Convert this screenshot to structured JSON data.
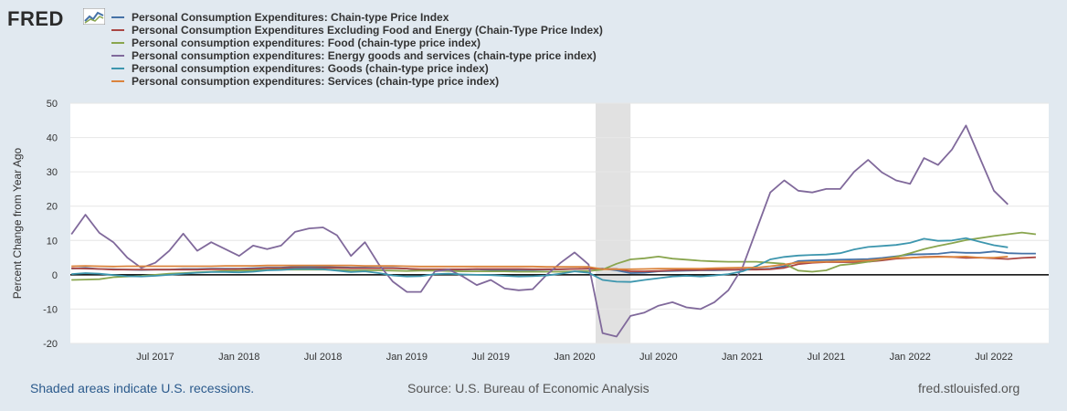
{
  "brand": {
    "name": "FRED",
    "icon": "fred-chart-logo-icon"
  },
  "footer": {
    "recession_note": "Shaded areas indicate U.S. recessions.",
    "source": "Source: U.S. Bureau of Economic Analysis",
    "site": "fred.stlouisfed.org"
  },
  "chart_data": {
    "type": "line",
    "title": "",
    "xlabel": "",
    "ylabel": "Percent Change from Year Ago",
    "ylim": [
      -20,
      50
    ],
    "yticks": [
      50,
      40,
      30,
      20,
      10,
      0,
      -10,
      -20
    ],
    "x_start": "2017-01",
    "x_end": "2022-10",
    "xticks": [
      "Jul 2017",
      "Jan 2018",
      "Jul 2018",
      "Jan 2019",
      "Jul 2019",
      "Jan 2020",
      "Jul 2020",
      "Jan 2021",
      "Jul 2021",
      "Jan 2022",
      "Jul 2022"
    ],
    "xtick_months": [
      6,
      12,
      18,
      24,
      30,
      36,
      42,
      48,
      54,
      60,
      66
    ],
    "recession": {
      "start_month": 37.5,
      "end_month": 40.0
    },
    "grid": true,
    "legend": "top",
    "series": [
      {
        "name": "Personal Consumption Expenditures: Chain-type Price Index",
        "color": "#4572a7",
        "values": [
          1.8,
          2.0,
          1.7,
          1.6,
          1.5,
          1.4,
          1.5,
          1.5,
          1.7,
          1.7,
          1.8,
          1.8,
          1.8,
          1.9,
          2.1,
          2.1,
          2.3,
          2.3,
          2.3,
          2.2,
          2.1,
          2.1,
          2.0,
          2.0,
          1.8,
          1.4,
          1.5,
          1.4,
          1.5,
          1.6,
          1.4,
          1.4,
          1.4,
          1.4,
          1.5,
          1.6,
          1.7,
          1.8,
          1.8,
          1.3,
          0.5,
          0.6,
          1.0,
          1.1,
          1.2,
          1.3,
          1.3,
          1.4,
          1.5,
          1.6,
          1.8,
          2.5,
          4.0,
          4.2,
          4.3,
          4.4,
          4.5,
          4.6,
          4.9,
          5.4,
          5.9,
          6.0,
          6.1,
          6.6,
          6.4,
          6.4,
          6.8,
          6.3,
          6.2,
          6.2
        ]
      },
      {
        "name": "Personal Consumption Expenditures Excluding Food and Energy (Chain-Type Price Index)",
        "color": "#aa4643",
        "values": [
          1.9,
          1.8,
          1.7,
          1.5,
          1.5,
          1.5,
          1.5,
          1.5,
          1.5,
          1.5,
          1.6,
          1.6,
          1.7,
          1.7,
          1.9,
          1.9,
          2.0,
          1.9,
          2.0,
          2.0,
          1.9,
          1.9,
          1.9,
          1.9,
          1.8,
          1.6,
          1.6,
          1.6,
          1.6,
          1.7,
          1.7,
          1.7,
          1.7,
          1.6,
          1.6,
          1.6,
          1.7,
          1.8,
          1.7,
          1.7,
          1.0,
          1.0,
          1.1,
          1.3,
          1.4,
          1.4,
          1.5,
          1.5,
          1.5,
          1.5,
          1.6,
          2.0,
          3.1,
          3.5,
          3.7,
          3.7,
          3.7,
          3.8,
          4.2,
          4.7,
          4.9,
          5.2,
          5.3,
          5.2,
          4.9,
          5.0,
          4.8,
          4.6,
          4.9,
          5.1
        ]
      },
      {
        "name": "Personal consumption expenditures: Food (chain-type price index)",
        "color": "#89a54e",
        "values": [
          -1.5,
          -1.4,
          -1.3,
          -0.7,
          -0.5,
          -0.3,
          0.0,
          0.3,
          0.5,
          0.7,
          0.9,
          1.1,
          1.2,
          1.3,
          1.4,
          1.5,
          1.5,
          1.5,
          1.5,
          1.4,
          1.3,
          1.3,
          1.3,
          1.2,
          1.1,
          1.2,
          1.2,
          1.1,
          1.0,
          1.0,
          1.0,
          1.0,
          0.9,
          0.9,
          0.9,
          0.9,
          1.0,
          1.1,
          1.5,
          3.2,
          4.5,
          4.8,
          5.3,
          4.7,
          4.4,
          4.1,
          3.9,
          3.8,
          3.8,
          3.8,
          3.5,
          3.2,
          1.2,
          0.9,
          1.3,
          2.8,
          3.2,
          3.8,
          4.5,
          5.2,
          6.3,
          7.5,
          8.4,
          9.2,
          10.1,
          10.7,
          11.3,
          11.8,
          12.3,
          11.8
        ]
      },
      {
        "name": "Personal consumption expenditures: Energy goods and services (chain-type price index)",
        "color": "#80699b",
        "values": [
          11.8,
          17.5,
          12.2,
          9.5,
          5.0,
          2.0,
          3.5,
          7.0,
          12.0,
          7.0,
          9.5,
          7.5,
          5.5,
          8.5,
          7.5,
          8.5,
          12.5,
          13.5,
          13.8,
          11.5,
          5.5,
          9.5,
          3.0,
          -2.0,
          -5.0,
          -5.0,
          1.0,
          1.5,
          -0.5,
          -3.0,
          -1.5,
          -4.0,
          -4.5,
          -4.2,
          0.0,
          3.5,
          6.5,
          3.0,
          -17.0,
          -18.0,
          -12.0,
          -11.0,
          -9.0,
          -8.0,
          -9.5,
          -10.0,
          -8.0,
          -4.5,
          2.0,
          13.0,
          24.0,
          27.5,
          24.5,
          24.0,
          25.0,
          25.0,
          30.0,
          33.5,
          29.8,
          27.5,
          26.5,
          34.0,
          32.0,
          36.5,
          43.5,
          34.0,
          24.5,
          20.5
        ]
      },
      {
        "name": "Personal consumption expenditures: Goods (chain-type price index)",
        "color": "#3d96ae",
        "values": [
          0.2,
          0.5,
          0.3,
          -0.1,
          -0.4,
          -0.5,
          -0.3,
          0.0,
          0.3,
          0.6,
          0.8,
          0.8,
          0.7,
          0.9,
          1.3,
          1.4,
          1.7,
          1.7,
          1.6,
          1.2,
          0.8,
          1.0,
          0.5,
          -0.2,
          -0.5,
          -0.4,
          0.2,
          0.3,
          0.1,
          0.0,
          -0.1,
          -0.3,
          -0.5,
          -0.4,
          -0.2,
          0.3,
          1.0,
          0.6,
          -1.5,
          -2.0,
          -2.1,
          -1.5,
          -1.0,
          -0.5,
          -0.3,
          -0.5,
          -0.2,
          0.2,
          1.0,
          2.5,
          4.5,
          5.2,
          5.6,
          5.8,
          5.9,
          6.3,
          7.4,
          8.1,
          8.4,
          8.7,
          9.3,
          10.5,
          9.9,
          10.0,
          10.7,
          9.6,
          8.6,
          8.0
        ]
      },
      {
        "name": "Personal consumption expenditures: Services (chain-type price index)",
        "color": "#db843d",
        "values": [
          2.5,
          2.6,
          2.5,
          2.4,
          2.5,
          2.5,
          2.5,
          2.5,
          2.5,
          2.5,
          2.5,
          2.6,
          2.6,
          2.6,
          2.7,
          2.7,
          2.7,
          2.7,
          2.7,
          2.7,
          2.7,
          2.6,
          2.6,
          2.6,
          2.5,
          2.4,
          2.4,
          2.4,
          2.4,
          2.4,
          2.4,
          2.4,
          2.4,
          2.4,
          2.3,
          2.3,
          2.3,
          2.3,
          1.6,
          1.6,
          1.6,
          1.7,
          1.8,
          1.8,
          1.8,
          1.8,
          1.9,
          2.0,
          2.1,
          2.1,
          2.5,
          3.0,
          3.6,
          3.7,
          3.8,
          3.9,
          4.0,
          4.2,
          4.6,
          4.9,
          5.0,
          5.1,
          5.2,
          5.2,
          5.3,
          5.0,
          5.0,
          5.3
        ]
      }
    ]
  }
}
